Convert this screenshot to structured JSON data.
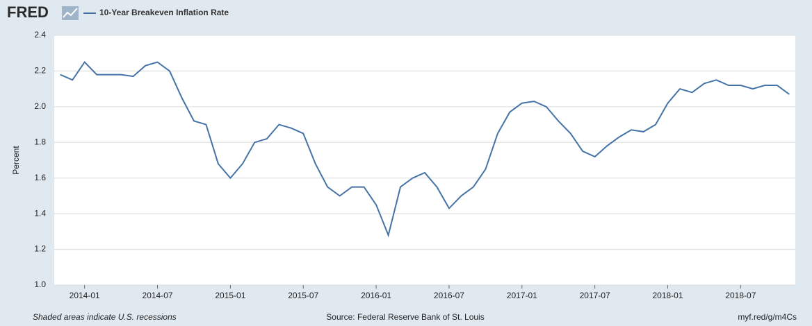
{
  "chart_data": {
    "type": "line",
    "logo": "FRED",
    "y_label": "Percent",
    "footer_left": "Shaded areas indicate U.S. recessions",
    "footer_center": "Source: Federal Reserve Bank of St. Louis",
    "footer_right": "myf.red/g/m4Cs",
    "x": [
      "2013-11",
      "2013-12",
      "2014-01",
      "2014-02",
      "2014-03",
      "2014-04",
      "2014-05",
      "2014-06",
      "2014-07",
      "2014-08",
      "2014-09",
      "2014-10",
      "2014-11",
      "2014-12",
      "2015-01",
      "2015-02",
      "2015-03",
      "2015-04",
      "2015-05",
      "2015-06",
      "2015-07",
      "2015-08",
      "2015-09",
      "2015-10",
      "2015-11",
      "2015-12",
      "2016-01",
      "2016-02",
      "2016-03",
      "2016-04",
      "2016-05",
      "2016-06",
      "2016-07",
      "2016-08",
      "2016-09",
      "2016-10",
      "2016-11",
      "2016-12",
      "2017-01",
      "2017-02",
      "2017-03",
      "2017-04",
      "2017-05",
      "2017-06",
      "2017-07",
      "2017-08",
      "2017-09",
      "2017-10",
      "2017-11",
      "2017-12",
      "2018-01",
      "2018-02",
      "2018-03",
      "2018-04",
      "2018-05",
      "2018-06",
      "2018-07",
      "2018-08",
      "2018-09",
      "2018-10",
      "2018-11"
    ],
    "series": [
      {
        "name": "10-Year Breakeven Inflation Rate",
        "color": "#4572a7",
        "values": [
          2.18,
          2.15,
          2.25,
          2.18,
          2.18,
          2.18,
          2.17,
          2.23,
          2.25,
          2.2,
          2.05,
          1.92,
          1.9,
          1.68,
          1.6,
          1.68,
          1.8,
          1.82,
          1.9,
          1.88,
          1.85,
          1.68,
          1.55,
          1.5,
          1.55,
          1.55,
          1.45,
          1.28,
          1.55,
          1.6,
          1.63,
          1.55,
          1.43,
          1.5,
          1.55,
          1.65,
          1.85,
          1.97,
          2.02,
          2.03,
          2.0,
          1.92,
          1.85,
          1.75,
          1.72,
          1.78,
          1.83,
          1.87,
          1.86,
          1.9,
          2.02,
          2.1,
          2.08,
          2.13,
          2.15,
          2.12,
          2.12,
          2.1,
          2.12,
          2.12,
          2.07
        ]
      }
    ],
    "xlim": [
      "2013-11",
      "2018-11"
    ],
    "xticks": [
      "2014-01",
      "2014-07",
      "2015-01",
      "2015-07",
      "2016-01",
      "2016-07",
      "2017-01",
      "2017-07",
      "2018-01",
      "2018-07"
    ],
    "ylim": [
      1.0,
      2.4
    ],
    "yticks": [
      {
        "value": 1.0,
        "label": "1.0"
      },
      1.2,
      1.4,
      1.6,
      1.8,
      {
        "value": 2.0,
        "label": "2.0"
      },
      2.2,
      2.4
    ],
    "grid": true
  }
}
